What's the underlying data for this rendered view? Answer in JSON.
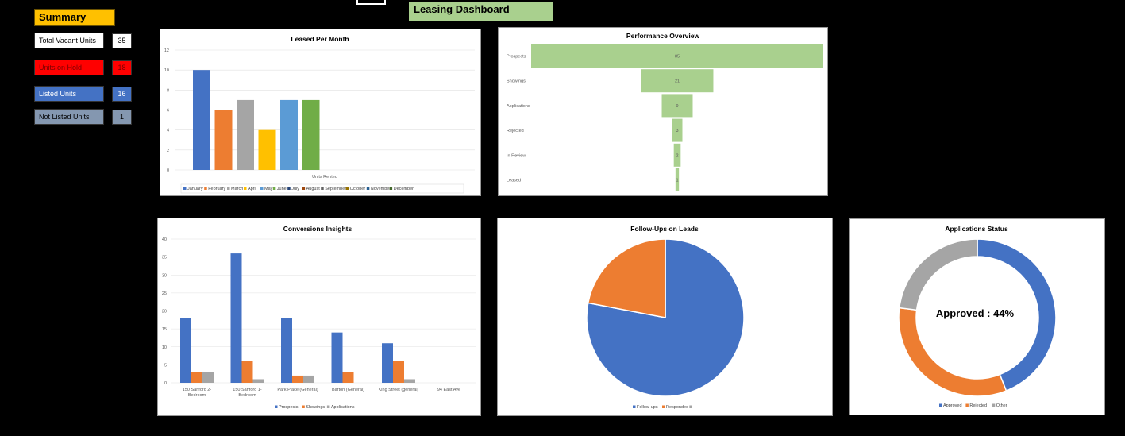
{
  "dashboard": {
    "title": "Leasing Dashboard"
  },
  "summary": {
    "title": "Summary",
    "items": [
      {
        "label": "Total Vacant Units",
        "value": "35",
        "bg": "#ffffff",
        "fg": "#000000",
        "val_bg": "#ffffff"
      },
      {
        "label": "Units on Hold",
        "value": "18",
        "bg": "#ff0000",
        "fg": "#7a0000",
        "val_bg": "#ff0000"
      },
      {
        "label": "Listed Units",
        "value": "16",
        "bg": "#4472c4",
        "fg": "#ffffff",
        "val_bg": "#4472c4"
      },
      {
        "label": "Not Listed Units",
        "value": "1",
        "bg": "#8497b0",
        "fg": "#000000",
        "val_bg": "#8497b0"
      }
    ]
  },
  "chart_data": [
    {
      "id": "leased",
      "type": "bar",
      "title": "Leased Per Month",
      "xlabel": "Units Rented",
      "ylim": [
        0,
        12
      ],
      "yticks": [
        "0",
        "2",
        "4",
        "6",
        "8",
        "10",
        "12"
      ],
      "series": [
        {
          "name": "January",
          "value": 10,
          "color": "#4472c4"
        },
        {
          "name": "February",
          "value": 6,
          "color": "#ed7d31"
        },
        {
          "name": "March",
          "value": 7,
          "color": "#a5a5a5"
        },
        {
          "name": "April",
          "value": 4,
          "color": "#ffc000"
        },
        {
          "name": "May",
          "value": 7,
          "color": "#5b9bd5"
        },
        {
          "name": "June",
          "value": 7,
          "color": "#70ad47"
        },
        {
          "name": "July",
          "value": 0,
          "color": "#264478"
        },
        {
          "name": "August",
          "value": 0,
          "color": "#9e480e"
        },
        {
          "name": "September",
          "value": 0,
          "color": "#636363"
        },
        {
          "name": "October",
          "value": 0,
          "color": "#997300"
        },
        {
          "name": "November",
          "value": 0,
          "color": "#255e91"
        },
        {
          "name": "December",
          "value": 0,
          "color": "#43682b"
        }
      ]
    },
    {
      "id": "funnel",
      "type": "bar",
      "title": "Performance Overview",
      "categories": [
        "Prospects",
        "Showings",
        "Applications",
        "Rejected",
        "In Review",
        "Leased"
      ],
      "values": [
        85,
        21,
        9,
        3,
        2,
        1
      ],
      "labels": [
        "85",
        "21",
        "9",
        "3",
        "2",
        "1"
      ],
      "color": "#a9d08e"
    },
    {
      "id": "conversions",
      "type": "bar",
      "title": "Conversions Insights",
      "ylim": [
        0,
        40
      ],
      "yticks": [
        "0",
        "5",
        "10",
        "15",
        "20",
        "25",
        "30",
        "35",
        "40"
      ],
      "categories": [
        [
          "150 Sanford 2-",
          "Bedroom"
        ],
        [
          "150 Sanford 1-",
          "Bedroom"
        ],
        [
          "Park Place (General)"
        ],
        [
          "Barton (General)"
        ],
        [
          "King Street (general)"
        ],
        [
          "94 East Ave"
        ]
      ],
      "series": [
        {
          "name": "Prospects",
          "values": [
            18,
            36,
            18,
            14,
            11,
            0
          ],
          "color": "#4472c4"
        },
        {
          "name": "Showings",
          "values": [
            3,
            6,
            2,
            3,
            6,
            0
          ],
          "color": "#ed7d31"
        },
        {
          "name": "Applications",
          "values": [
            3,
            1,
            2,
            0,
            1,
            0
          ],
          "color": "#a5a5a5"
        }
      ]
    },
    {
      "id": "followups",
      "type": "pie",
      "title": "Follow-Ups on Leads",
      "slices": [
        {
          "name": "Follow-ups",
          "value": 78,
          "color": "#4472c4"
        },
        {
          "name": "Responded",
          "value": 22,
          "color": "#ed7d31"
        },
        {
          "name": "",
          "value": 0,
          "color": "#a5a5a5"
        }
      ]
    },
    {
      "id": "appstatus",
      "type": "pie",
      "title": "Applications Status",
      "center_label": "Approved : 44%",
      "slices": [
        {
          "name": "Approved",
          "value": 44,
          "color": "#4472c4"
        },
        {
          "name": "Rejected",
          "value": 33,
          "color": "#ed7d31"
        },
        {
          "name": "Other",
          "value": 23,
          "color": "#a5a5a5"
        }
      ]
    }
  ]
}
